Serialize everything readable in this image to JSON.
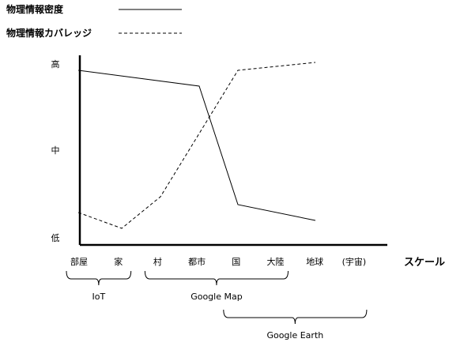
{
  "chart_data": {
    "type": "line",
    "title": "",
    "xlabel": "スケール",
    "ylabel": "",
    "categories": [
      "部屋",
      "家",
      "村",
      "都市",
      "国",
      "大陸",
      "地球",
      "(宇宙)"
    ],
    "y_ticks": [
      "低",
      "中",
      "高"
    ],
    "ylim": [
      0,
      2.2
    ],
    "series": [
      {
        "name": "物理情報密度",
        "style": "solid",
        "points": [
          {
            "x": -0.12,
            "y": 2.1
          },
          {
            "x": 3.0,
            "y": 1.9
          },
          {
            "x": 4.0,
            "y": 0.4
          },
          {
            "x": 6.0,
            "y": 0.2
          }
        ]
      },
      {
        "name": "物理情報カバレッジ",
        "style": "dashed",
        "points": [
          {
            "x": -0.12,
            "y": 0.3
          },
          {
            "x": 1.0,
            "y": 0.1
          },
          {
            "x": 2.0,
            "y": 0.5
          },
          {
            "x": 4.0,
            "y": 2.1
          },
          {
            "x": 6.0,
            "y": 2.2
          }
        ]
      }
    ],
    "groups": [
      {
        "label": "IoT",
        "from": 0,
        "to": 1
      },
      {
        "label": "Google Map",
        "from": 2,
        "to": 5
      },
      {
        "label": "Google Earth",
        "from": 4,
        "to": 7
      }
    ],
    "legend": "top-left",
    "grid": false
  }
}
